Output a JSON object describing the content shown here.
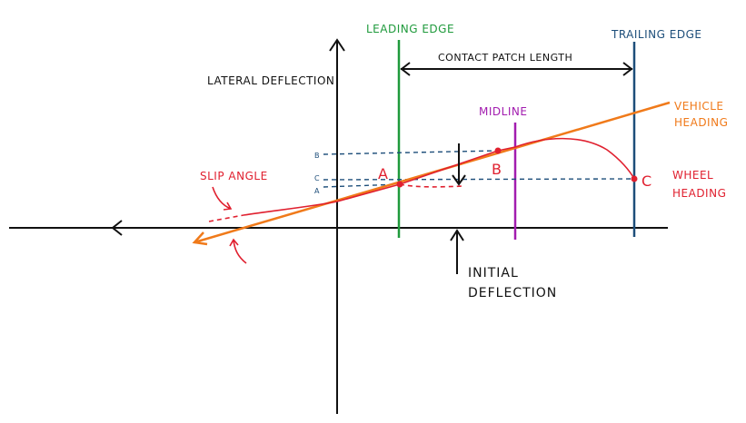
{
  "labels": {
    "leading_edge": "LEADING EDGE",
    "trailing_edge": "TRAILING EDGE",
    "lateral_deflection": "LATERAL DEFLECTION",
    "contact_patch_length": "CONTACT PATCH LENGTH",
    "midline": "MIDLINE",
    "vehicle_heading_line1": "VEHICLE",
    "vehicle_heading_line2": "HEADING",
    "slip_angle": "SLIP ANGLE",
    "wheel_heading_line1": "WHEEL",
    "wheel_heading_line2": "HEADING",
    "initial_deflection_line1": "INITIAL",
    "initial_deflection_line2": "DEFLECTION",
    "point_a": "A",
    "point_b": "B",
    "point_c": "C",
    "tick_b": "B",
    "tick_c": "C",
    "tick_a": "A"
  },
  "colors": {
    "axis": "#111111",
    "leading_edge": "#1f9a3c",
    "trailing_edge": "#1d4e7a",
    "midline": "#a21caf",
    "vehicle_heading": "#f07a1a",
    "wheel": "#e0202f",
    "guide": "#1d4e7a"
  }
}
